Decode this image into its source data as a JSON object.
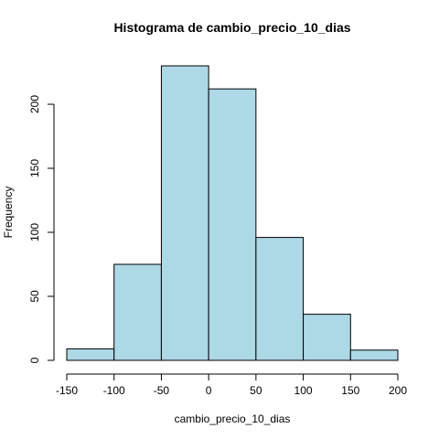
{
  "chart_data": {
    "type": "bar",
    "title": "Histograma de cambio_precio_10_dias",
    "xlabel": "cambio_precio_10_dias",
    "ylabel": "Frequency",
    "bins": [
      {
        "from": -150,
        "to": -100,
        "count": 9
      },
      {
        "from": -100,
        "to": -50,
        "count": 75
      },
      {
        "from": -50,
        "to": 0,
        "count": 230
      },
      {
        "from": 0,
        "to": 50,
        "count": 212
      },
      {
        "from": 50,
        "to": 100,
        "count": 96
      },
      {
        "from": 100,
        "to": 150,
        "count": 36
      },
      {
        "from": 150,
        "to": 200,
        "count": 8
      }
    ],
    "xlim": [
      -150,
      200
    ],
    "ylim": [
      0,
      230
    ],
    "x_ticks": [
      -150,
      -100,
      -50,
      0,
      50,
      100,
      150,
      200
    ],
    "x_tick_labels": [
      "-150",
      "-100",
      "-50",
      "0",
      "50",
      "100",
      "150",
      "200"
    ],
    "y_ticks": [
      0,
      50,
      100,
      150,
      200
    ],
    "y_tick_labels": [
      "0",
      "50",
      "100",
      "150",
      "200"
    ],
    "bar_fill": "#add8e6",
    "bar_stroke": "#000000",
    "grid": false,
    "legend": "none"
  }
}
